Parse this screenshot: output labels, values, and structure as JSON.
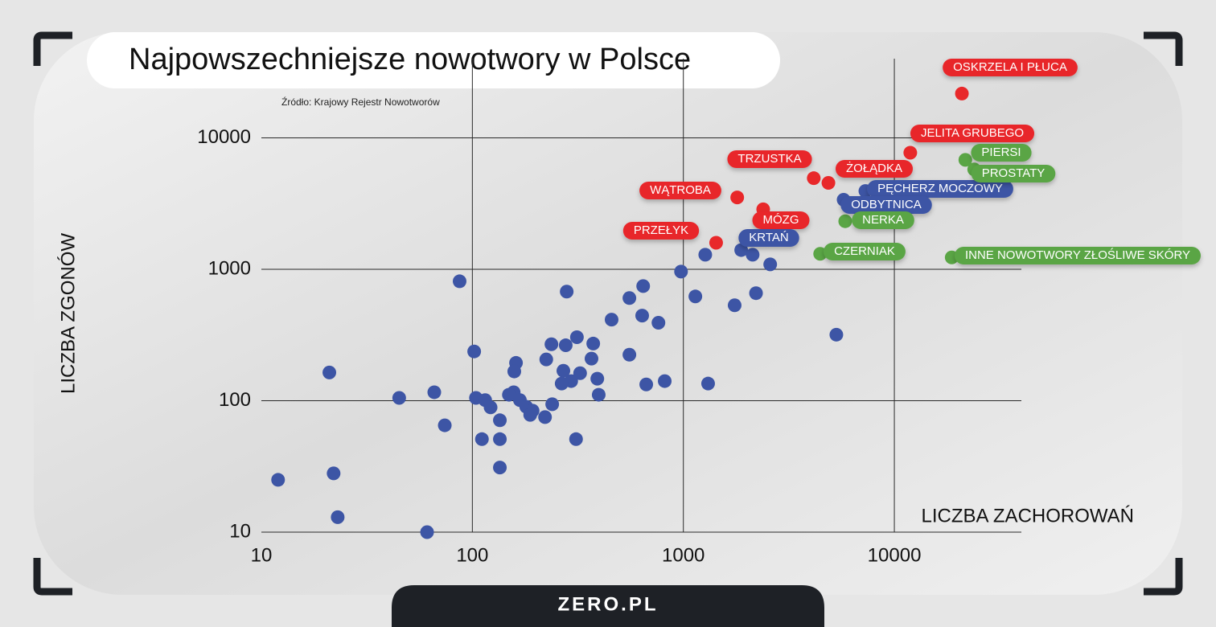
{
  "chart_data": {
    "type": "scatter",
    "title": "Najpowszechniejsze nowotwory w Polsce",
    "source": "Źródło: Krajowy Rejestr Nowotworów",
    "x_label": "LICZBA ZACHOROWAŃ",
    "y_label": "LICZBA ZGONÓW",
    "xlim": [
      10,
      40000
    ],
    "ylim": [
      10,
      40000
    ],
    "xticks": [
      10,
      100,
      1000,
      10000
    ],
    "yticks": [
      10,
      100,
      1000,
      10000
    ],
    "x_log": true,
    "y_log": true,
    "grid": true,
    "series": [
      {
        "color": "#e8282a",
        "labels": [
          "OSKRZELA I PŁUCA",
          "JELITA GRUBEGO",
          "TRZUSTKA",
          "ŻOŁĄDKA",
          "WĄTROBA",
          "MÓZG",
          "PRZEŁYK"
        ],
        "x": [
          20900,
          11900,
          4150,
          4870,
          1800,
          2390,
          1430
        ],
        "values": [
          21700,
          7700,
          4930,
          4540,
          3520,
          2860,
          1590
        ]
      },
      {
        "color": "#3d55a5",
        "labels": [
          "PĘCHERZ MOCZOWY",
          "ODBYTNICA",
          "KRTAŃ"
        ],
        "x": [
          7290,
          5750,
          1880
        ],
        "values": [
          3940,
          3380,
          1400
        ]
      },
      {
        "color": "#5aa545",
        "labels": [
          "PIERSI",
          "PROSTATY",
          "NERKA",
          "CZERNIAK",
          "INNE NOWOTWORY ZŁOŚLIWE SKÓRY"
        ],
        "x": [
          21700,
          23900,
          5850,
          4450,
          18700
        ],
        "values": [
          6800,
          5750,
          2320,
          1310,
          1230
        ]
      },
      {
        "color": "#3d55a5",
        "x": [
          1270,
          2130,
          2580,
          975,
          87,
          280,
          645,
          555,
          1140,
          2210,
          1750,
          638,
          457,
          762,
          5310,
          313,
          374,
          237,
          277,
          102,
          555,
          367,
          224,
          161,
          158,
          21,
          270,
          324,
          391,
          294,
          265,
          816,
          667,
          1310,
          66,
          157,
          397,
          45,
          104,
          115,
          149,
          168,
          180,
          239,
          122,
          193,
          188,
          221,
          135,
          74,
          111,
          135,
          310,
          135,
          22,
          12,
          23,
          61
        ],
        "values": [
          1290,
          1290,
          1090,
          960,
          810,
          676,
          745,
          604,
          621,
          658,
          532,
          444,
          414,
          392,
          318,
          304,
          272,
          269,
          264,
          237,
          224,
          209,
          206,
          194,
          167,
          164,
          169,
          162,
          147,
          141,
          135,
          141,
          133,
          135,
          116,
          116,
          111,
          105,
          105,
          101,
          111,
          101,
          90,
          94,
          89,
          84,
          78,
          75,
          71,
          65,
          51,
          51,
          51,
          31,
          28,
          25,
          13,
          10
        ]
      }
    ]
  },
  "footer": {
    "logo": "ZERO.PL"
  }
}
